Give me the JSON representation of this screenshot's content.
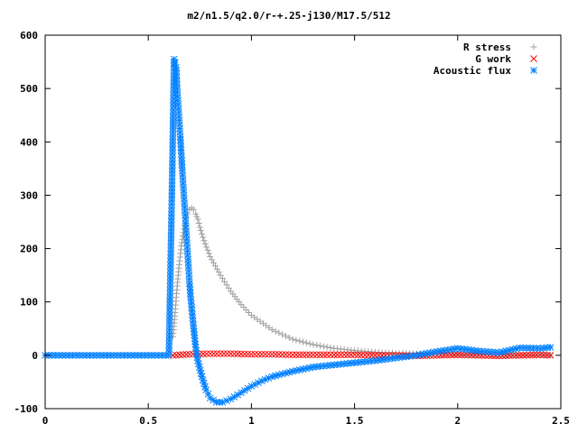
{
  "chart_data": {
    "type": "scatter",
    "title": "m2/n1.5/q2.0/r-+.25-j130/M17.5/512",
    "xlabel": "",
    "ylabel": "",
    "xlim": [
      0,
      2.5
    ],
    "ylim": [
      -100,
      600
    ],
    "x_ticks": [
      "0",
      "0.5",
      "1",
      "1.5",
      "2",
      "2.5"
    ],
    "y_ticks": [
      "-100",
      "0",
      "100",
      "200",
      "300",
      "400",
      "500",
      "600"
    ],
    "grid": false,
    "legend_position": "top-right",
    "series": [
      {
        "name": "R stress",
        "marker": "plus",
        "color": "#a0a0a0",
        "x": [
          0.62,
          0.63,
          0.64,
          0.65,
          0.66,
          0.67,
          0.68,
          0.69,
          0.7,
          0.71,
          0.72,
          0.73,
          0.74,
          0.75,
          0.77,
          0.8,
          0.85,
          0.9,
          0.95,
          1.0,
          1.1,
          1.2,
          1.3,
          1.4,
          1.5,
          1.6,
          1.7,
          1.8,
          1.9,
          2.0,
          2.1,
          2.2,
          2.3,
          2.4,
          2.45
        ],
        "y": [
          35,
          80,
          130,
          170,
          205,
          230,
          250,
          265,
          273,
          276,
          273,
          265,
          255,
          240,
          215,
          185,
          150,
          120,
          95,
          75,
          48,
          30,
          20,
          13,
          9,
          6,
          4,
          3,
          2,
          1,
          1,
          0,
          0,
          0,
          0
        ]
      },
      {
        "name": "G work",
        "marker": "cross",
        "color": "#ff0000",
        "x": [
          0.62,
          0.7,
          0.8,
          0.9,
          1.0,
          1.1,
          1.2,
          1.3,
          1.4,
          1.5,
          1.6,
          1.7,
          1.8,
          1.9,
          2.0,
          2.1,
          2.2,
          2.3,
          2.4,
          2.45
        ],
        "y": [
          0,
          2,
          3,
          3,
          2,
          2,
          1,
          1,
          1,
          1,
          0,
          0,
          -1,
          0,
          1,
          0,
          -1,
          0,
          1,
          0
        ]
      },
      {
        "name": "Acoustic flux",
        "marker": "asterisk",
        "color": "#0080ff",
        "x": [
          0.0,
          0.1,
          0.2,
          0.3,
          0.4,
          0.5,
          0.55,
          0.6,
          0.615,
          0.625,
          0.63,
          0.635,
          0.64,
          0.645,
          0.65,
          0.655,
          0.66,
          0.665,
          0.67,
          0.675,
          0.68,
          0.685,
          0.69,
          0.695,
          0.7,
          0.705,
          0.71,
          0.715,
          0.72,
          0.725,
          0.73,
          0.74,
          0.76,
          0.78,
          0.8,
          0.83,
          0.86,
          0.9,
          0.95,
          1.0,
          1.05,
          1.1,
          1.2,
          1.3,
          1.4,
          1.5,
          1.6,
          1.7,
          1.8,
          1.9,
          2.0,
          2.1,
          2.2,
          2.3,
          2.4,
          2.45
        ],
        "y": [
          0,
          0,
          0,
          0,
          0,
          0,
          0,
          0,
          317,
          555,
          548,
          540,
          500,
          470,
          440,
          410,
          378,
          345,
          315,
          285,
          255,
          225,
          195,
          165,
          135,
          110,
          90,
          70,
          50,
          32,
          15,
          -10,
          -40,
          -65,
          -80,
          -88,
          -88,
          -82,
          -70,
          -58,
          -48,
          -40,
          -30,
          -22,
          -18,
          -14,
          -10,
          -5,
          0,
          7,
          13,
          8,
          5,
          14,
          13,
          15
        ]
      }
    ]
  }
}
